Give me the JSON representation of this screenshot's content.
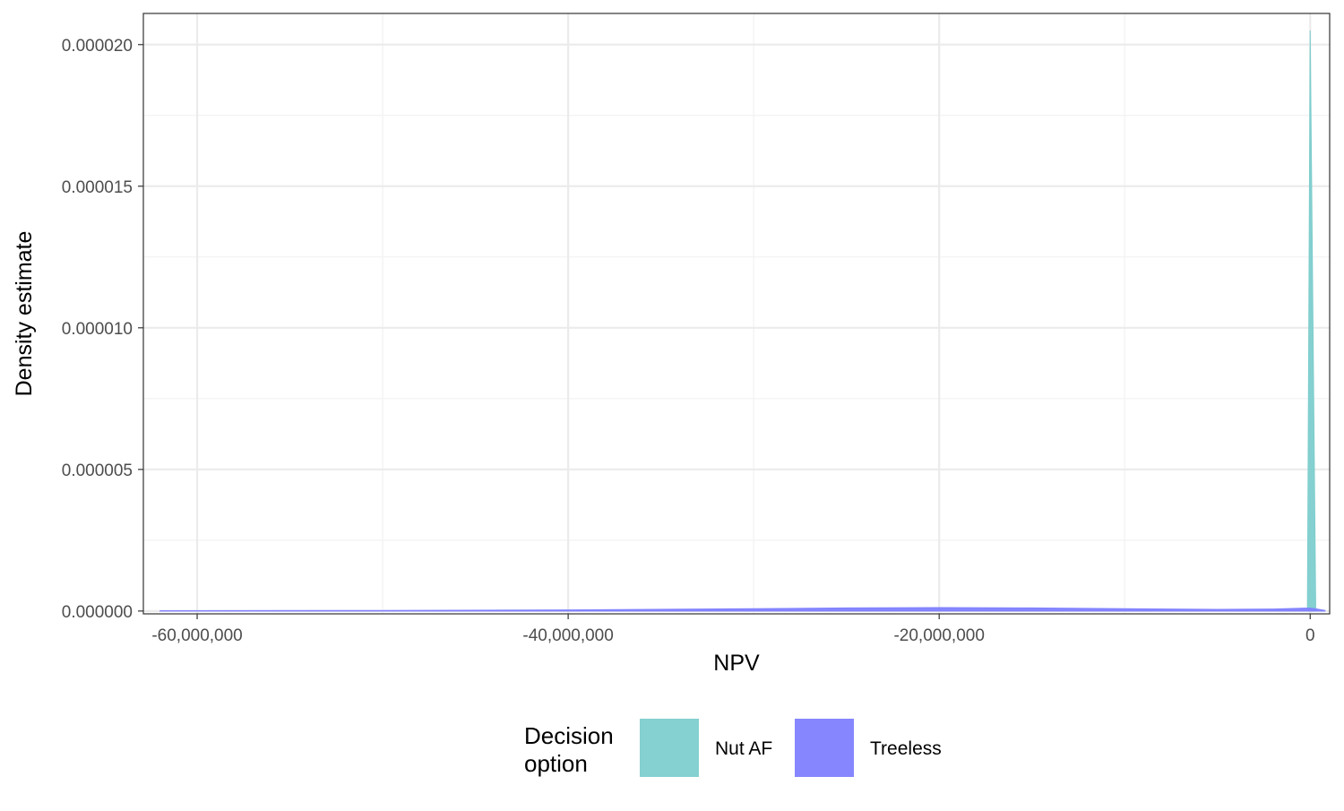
{
  "chart_data": {
    "type": "area",
    "title": "",
    "xlabel": "NPV",
    "ylabel": "Density estimate",
    "xlim": [
      -62900000,
      1050000
    ],
    "ylim": [
      -1e-07,
      2.11e-05
    ],
    "x_ticks": [
      {
        "value": -60000000,
        "label": "-60,000,000"
      },
      {
        "value": -40000000,
        "label": "-40,000,000"
      },
      {
        "value": -20000000,
        "label": "-20,000,000"
      },
      {
        "value": 0,
        "label": "0"
      }
    ],
    "y_ticks": [
      {
        "value": 0,
        "label": "0.000000"
      },
      {
        "value": 5e-06,
        "label": "0.000005"
      },
      {
        "value": 1e-05,
        "label": "0.000010"
      },
      {
        "value": 1.5e-05,
        "label": "0.000015"
      },
      {
        "value": 2e-05,
        "label": "0.000020"
      }
    ],
    "grid": true,
    "legend": {
      "title_lines": [
        "Decision",
        "option"
      ],
      "position": "bottom"
    },
    "series": [
      {
        "name": "Nut AF",
        "color": "#7ecdcd",
        "points": [
          [
            -150000,
            0
          ],
          [
            0,
            2.05e-05
          ],
          [
            300000,
            0
          ]
        ]
      },
      {
        "name": "Treeless",
        "color": "#8080ff",
        "points": [
          [
            -62000000,
            1e-08
          ],
          [
            -50000000,
            2e-08
          ],
          [
            -40000000,
            4e-08
          ],
          [
            -30000000,
            8e-08
          ],
          [
            -25000000,
            1.1e-07
          ],
          [
            -20000000,
            1.2e-07
          ],
          [
            -15000000,
            1.1e-07
          ],
          [
            -10000000,
            8e-08
          ],
          [
            -5000000,
            6e-08
          ],
          [
            -2000000,
            7e-08
          ],
          [
            -300000,
            1e-07
          ],
          [
            0,
            1e-07
          ],
          [
            300000,
            8e-08
          ],
          [
            800000,
            2e-08
          ]
        ]
      }
    ]
  }
}
